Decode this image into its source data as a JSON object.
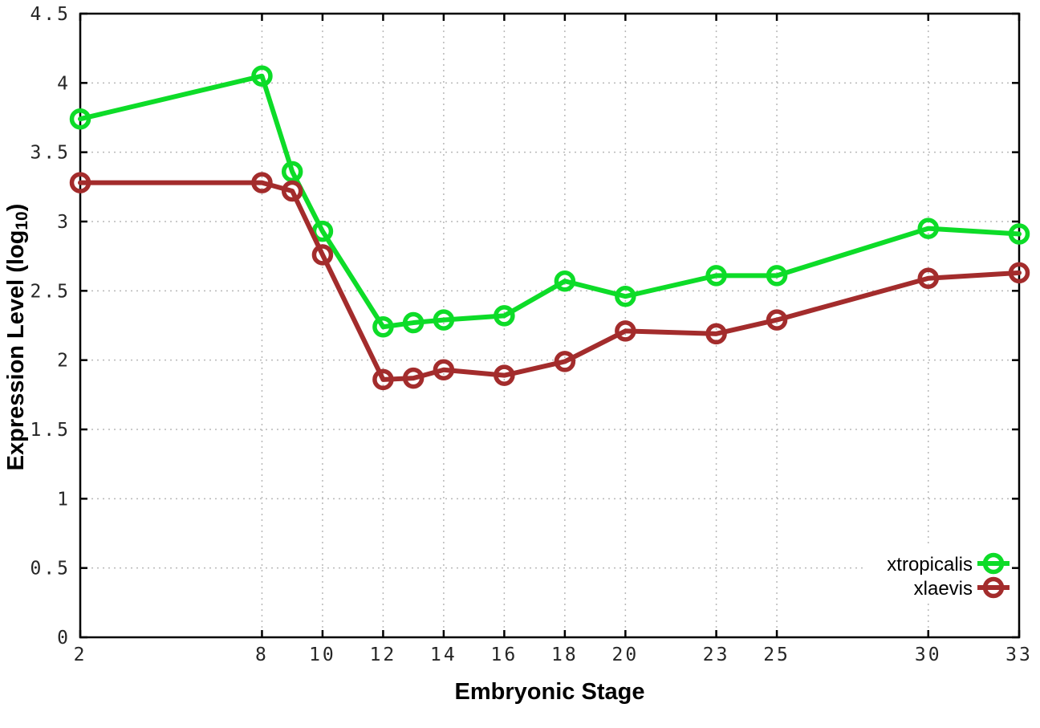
{
  "figure": {
    "background": "#ffffff",
    "xlabel": "Embryonic Stage",
    "ylabel_pre": "Expression Level (log",
    "ylabel_sub": "10",
    "ylabel_post": ")"
  },
  "style": {
    "grid_color": "#b8b8b8",
    "axis_color": "#000000",
    "tick_label_color": "#262626",
    "xtropicalis_color": "#0ddc28",
    "xlaevis_color": "#a32c2c"
  },
  "chart_data": {
    "type": "line",
    "title": "",
    "xlabel": "Embryonic Stage",
    "ylabel": "Expression Level (log10)",
    "x": [
      2,
      8,
      9,
      10,
      12,
      13,
      14,
      16,
      18,
      20,
      23,
      25,
      30,
      33
    ],
    "xlim": [
      2,
      33
    ],
    "ylim": [
      0,
      4.5
    ],
    "x_ticks": [
      2,
      8,
      10,
      12,
      14,
      16,
      18,
      20,
      23,
      25,
      30,
      33
    ],
    "x_tick_labels": [
      "2",
      "8",
      "10",
      "12",
      "14",
      "16",
      "18",
      "20",
      "23",
      "25",
      "30",
      "33"
    ],
    "y_ticks": [
      0,
      0.5,
      1,
      1.5,
      2,
      2.5,
      3,
      3.5,
      4,
      4.5
    ],
    "y_tick_labels": [
      "0",
      "0.5",
      "1",
      "1.5",
      "2",
      "2.5",
      "3",
      "3.5",
      "4",
      "4.5"
    ],
    "grid": true,
    "legend_position": "bottom-right",
    "marker": "open-circle",
    "series": [
      {
        "name": "xtropicalis",
        "color": "#0ddc28",
        "values": [
          3.74,
          4.05,
          3.36,
          2.93,
          2.24,
          2.27,
          2.29,
          2.32,
          2.57,
          2.46,
          2.61,
          2.61,
          2.95,
          2.91
        ]
      },
      {
        "name": "xlaevis",
        "color": "#a32c2c",
        "values": [
          3.28,
          3.28,
          3.22,
          2.76,
          1.86,
          1.87,
          1.93,
          1.89,
          1.99,
          2.21,
          2.19,
          2.29,
          2.59,
          2.63
        ]
      }
    ]
  }
}
